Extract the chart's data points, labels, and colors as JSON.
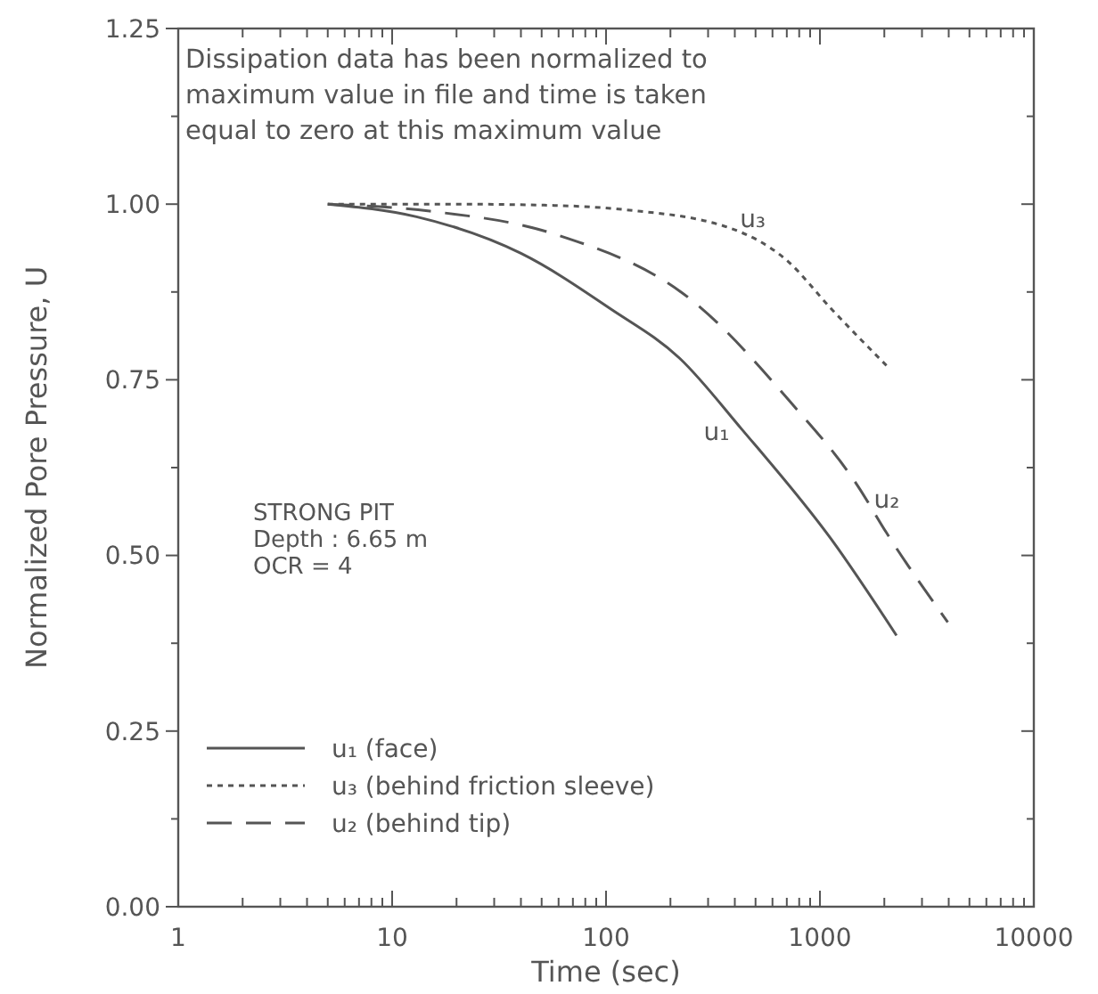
{
  "chart_data": {
    "type": "line",
    "xlabel": "Time (sec)",
    "ylabel": "Normalized Pore Pressure, U",
    "log": "x",
    "xlim": [
      1,
      10000
    ],
    "ylim": [
      0,
      1.25
    ],
    "xticks": [
      1,
      {
        "value": 2,
        "label": null
      },
      {
        "value": 3,
        "label": null
      },
      {
        "value": 4,
        "label": null
      },
      {
        "value": 5,
        "label": null
      },
      {
        "value": 6,
        "label": null
      },
      {
        "value": 7,
        "label": null
      },
      {
        "value": 8,
        "label": null
      },
      {
        "value": 9,
        "label": null
      },
      10,
      {
        "value": 20,
        "label": null
      },
      {
        "value": 30,
        "label": null
      },
      {
        "value": 40,
        "label": null
      },
      {
        "value": 50,
        "label": null
      },
      {
        "value": 60,
        "label": null
      },
      {
        "value": 70,
        "label": null
      },
      {
        "value": 80,
        "label": null
      },
      {
        "value": 90,
        "label": null
      },
      100,
      {
        "value": 200,
        "label": null
      },
      {
        "value": 300,
        "label": null
      },
      {
        "value": 400,
        "label": null
      },
      {
        "value": 500,
        "label": null
      },
      {
        "value": 600,
        "label": null
      },
      {
        "value": 700,
        "label": null
      },
      {
        "value": 800,
        "label": null
      },
      {
        "value": 900,
        "label": null
      },
      1000,
      {
        "value": 2000,
        "label": null
      },
      {
        "value": 3000,
        "label": null
      },
      {
        "value": 4000,
        "label": null
      },
      {
        "value": 5000,
        "label": null
      },
      {
        "value": 6000,
        "label": null
      },
      {
        "value": 7000,
        "label": null
      },
      {
        "value": 8000,
        "label": null
      },
      {
        "value": 9000,
        "label": null
      },
      10000
    ],
    "yticks": [
      {
        "value": 0,
        "label": "0.00"
      },
      {
        "value": 0.125,
        "label": null
      },
      {
        "value": 0.25,
        "label": "0.25"
      },
      {
        "value": 0.375,
        "label": null
      },
      {
        "value": 0.5,
        "label": "0.50"
      },
      {
        "value": 0.625,
        "label": null
      },
      {
        "value": 0.75,
        "label": "0.75"
      },
      {
        "value": 0.875,
        "label": null
      },
      {
        "value": 1,
        "label": "1.00"
      },
      {
        "value": 1.125,
        "label": null
      },
      {
        "value": 1.25,
        "label": "1.25"
      }
    ],
    "grid": false,
    "legend": "bottom left",
    "series": [
      {
        "name": "u₁ (face)",
        "color": "#555555",
        "line_style": "solid",
        "x": [
          5,
          13,
          40,
          105,
          222,
          430,
          1130,
          2280
        ],
        "values": [
          1,
          0.982,
          0.93,
          0.851,
          0.78,
          0.68,
          0.523,
          0.386
        ]
      },
      {
        "name": "u₃ (behind friction sleeve)",
        "color": "#555555",
        "line_style": "dotted",
        "x": [
          5,
          20,
          60,
          123,
          371,
          700,
          1130,
          2130
        ],
        "values": [
          1,
          1,
          0.998,
          0.992,
          0.967,
          0.92,
          0.851,
          0.765
        ]
      },
      {
        "name": "u₂ (behind tip)",
        "color": "#555555",
        "line_style": "dashed",
        "x": [
          5,
          15,
          58,
          257,
          720,
          1510,
          2040,
          3960
        ],
        "values": [
          1,
          0.99,
          0.957,
          0.861,
          0.72,
          0.598,
          0.533,
          0.405
        ]
      }
    ],
    "annotations": [
      "Dissipation data has been normalized to\nmaximum value in file and time is taken\nequal to zero at this maximum value",
      "STRONG PIT\nDepth : 6.65 m\nOCR = 4",
      {
        "text": "u₃",
        "x": 371,
        "y": 0.967
      },
      {
        "text": "u₂",
        "x": 1510,
        "y": 0.598
      },
      {
        "text": "u₁",
        "x": 430,
        "y": 0.68
      }
    ]
  }
}
